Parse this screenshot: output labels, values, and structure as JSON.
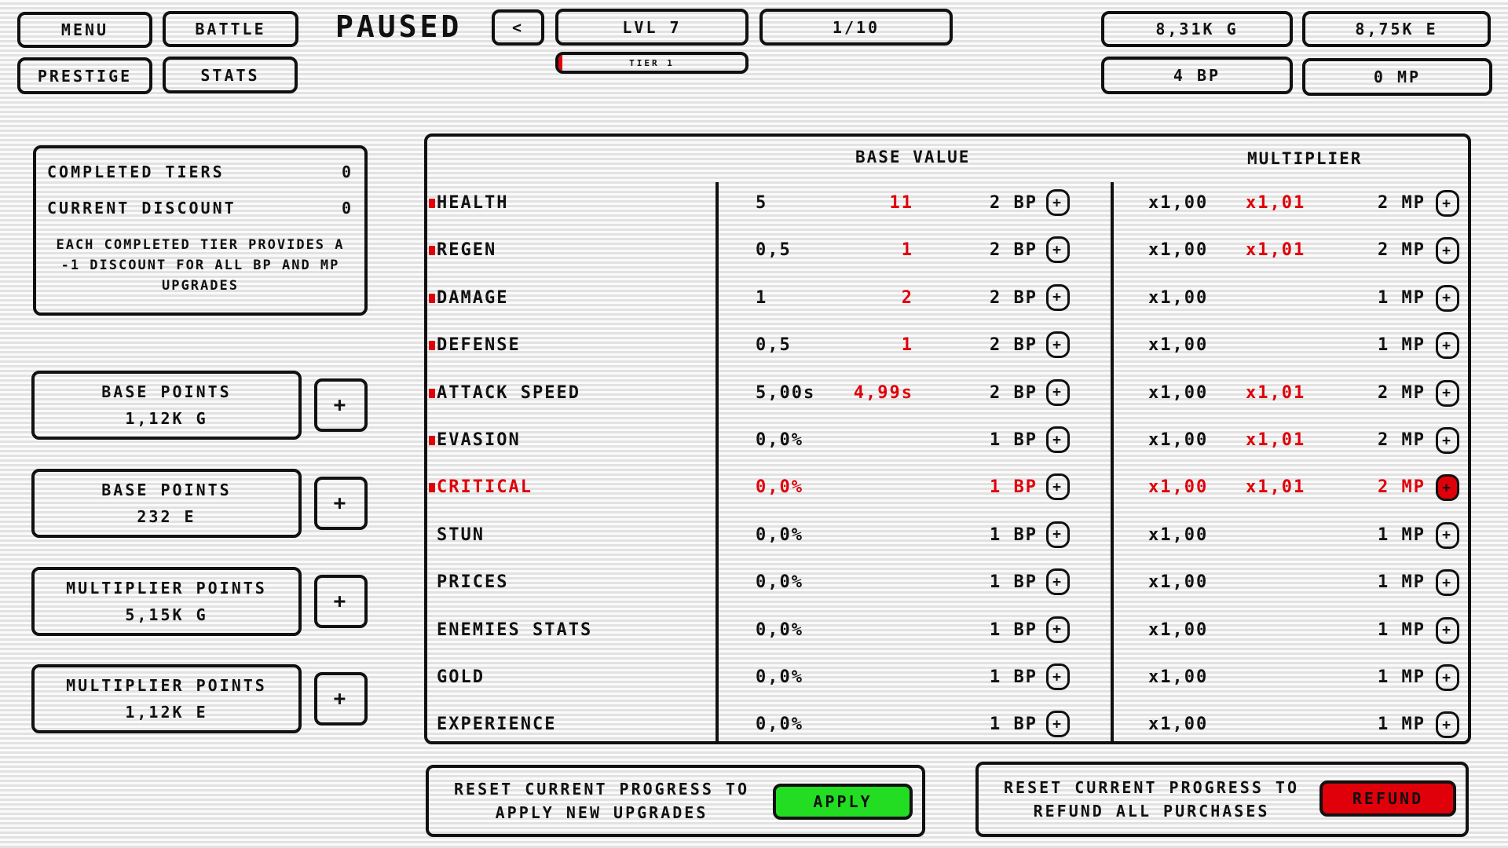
{
  "nav": {
    "menu": "MENU",
    "battle": "BATTLE",
    "prestige": "PRESTIGE",
    "stats": "STATS"
  },
  "status": "PAUSED",
  "level": {
    "back": "<",
    "label": "LVL 7",
    "progress": "1/10",
    "tier": "TIER 1",
    "tier_fill_percent": 2
  },
  "currency": {
    "gold": "8,31K G",
    "exp": "8,75K E",
    "bp": "4 BP",
    "mp": "0 MP"
  },
  "info": {
    "completed_label": "COMPLETED TIERS",
    "completed_value": "0",
    "discount_label": "CURRENT DISCOUNT",
    "discount_value": "0",
    "note": "EACH COMPLETED TIER PROVIDES A -1 DISCOUNT FOR ALL BP AND MP UPGRADES"
  },
  "points": [
    {
      "title": "BASE POINTS",
      "cost": "1,12K G",
      "plus": "+"
    },
    {
      "title": "BASE POINTS",
      "cost": "232 E",
      "plus": "+"
    },
    {
      "title": "MULTIPLIER POINTS",
      "cost": "5,15K G",
      "plus": "+"
    },
    {
      "title": "MULTIPLIER POINTS",
      "cost": "1,12K E",
      "plus": "+"
    }
  ],
  "table": {
    "base_header": "BASE VALUE",
    "mult_header": "MULTIPLIER",
    "rows": [
      {
        "name": "HEALTH",
        "marked": true,
        "highlight": false,
        "base": "5",
        "base_new": "11",
        "bp": "2 BP",
        "mult": "x1,00",
        "mult_new": "x1,01",
        "mp": "2 MP"
      },
      {
        "name": "REGEN",
        "marked": true,
        "highlight": false,
        "base": "0,5",
        "base_new": "1",
        "bp": "2 BP",
        "mult": "x1,00",
        "mult_new": "x1,01",
        "mp": "2 MP"
      },
      {
        "name": "DAMAGE",
        "marked": true,
        "highlight": false,
        "base": "1",
        "base_new": "2",
        "bp": "2 BP",
        "mult": "x1,00",
        "mult_new": "",
        "mp": "1 MP"
      },
      {
        "name": "DEFENSE",
        "marked": true,
        "highlight": false,
        "base": "0,5",
        "base_new": "1",
        "bp": "2 BP",
        "mult": "x1,00",
        "mult_new": "",
        "mp": "1 MP"
      },
      {
        "name": "ATTACK SPEED",
        "marked": true,
        "highlight": false,
        "base": "5,00s",
        "base_new": "4,99s",
        "bp": "2 BP",
        "mult": "x1,00",
        "mult_new": "x1,01",
        "mp": "2 MP"
      },
      {
        "name": "EVASION",
        "marked": true,
        "highlight": false,
        "base": "0,0%",
        "base_new": "",
        "bp": "1 BP",
        "mult": "x1,00",
        "mult_new": "x1,01",
        "mp": "2 MP"
      },
      {
        "name": "CRITICAL",
        "marked": true,
        "highlight": true,
        "base": "0,0%",
        "base_new": "",
        "bp": "1 BP",
        "mult": "x1,00",
        "mult_new": "x1,01",
        "mp": "2 MP"
      },
      {
        "name": "STUN",
        "marked": false,
        "highlight": false,
        "base": "0,0%",
        "base_new": "",
        "bp": "1 BP",
        "mult": "x1,00",
        "mult_new": "",
        "mp": "1 MP"
      },
      {
        "name": "PRICES",
        "marked": false,
        "highlight": false,
        "base": "0,0%",
        "base_new": "",
        "bp": "1 BP",
        "mult": "x1,00",
        "mult_new": "",
        "mp": "1 MP"
      },
      {
        "name": "ENEMIES STATS",
        "marked": false,
        "highlight": false,
        "base": "0,0%",
        "base_new": "",
        "bp": "1 BP",
        "mult": "x1,00",
        "mult_new": "",
        "mp": "1 MP"
      },
      {
        "name": "GOLD",
        "marked": false,
        "highlight": false,
        "base": "0,0%",
        "base_new": "",
        "bp": "1 BP",
        "mult": "x1,00",
        "mult_new": "",
        "mp": "1 MP"
      },
      {
        "name": "EXPERIENCE",
        "marked": false,
        "highlight": false,
        "base": "0,0%",
        "base_new": "",
        "bp": "1 BP",
        "mult": "x1,00",
        "mult_new": "",
        "mp": "1 MP"
      }
    ]
  },
  "apply": {
    "text": "RESET CURRENT PROGRESS TO APPLY NEW UPGRADES",
    "button": "APPLY"
  },
  "refund": {
    "text": "RESET CURRENT PROGRESS TO REFUND ALL PURCHASES",
    "button": "REFUND"
  },
  "colors": {
    "accent_red": "#e0000a",
    "apply_green": "#22dd22"
  }
}
